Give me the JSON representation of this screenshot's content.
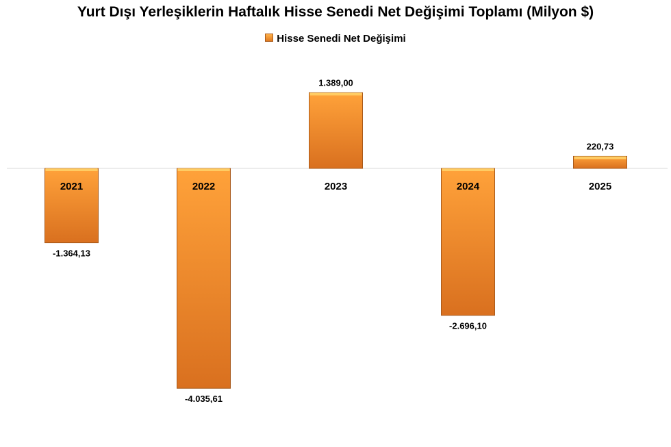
{
  "chart_data": {
    "type": "bar",
    "title": "Yurt Dışı Yerleşiklerin Haftalık Hisse Senedi Net Değişimi Toplamı (Milyon $)",
    "categories": [
      "2021",
      "2022",
      "2023",
      "2024",
      "2025"
    ],
    "series": [
      {
        "name": "Hisse Senedi Net Değişimi",
        "values": [
          -1364.13,
          -4035.61,
          1389.0,
          -2696.1,
          220.73
        ],
        "value_labels": [
          "-1.364,13",
          "-4.035,61",
          "1.389,00",
          "-2.696,10",
          "220,73"
        ]
      }
    ],
    "xlabel": "",
    "ylabel": "",
    "ylim": [
      -4400,
      1700
    ],
    "grid": false,
    "legend_position": "top",
    "colors": {
      "bar_top": "#ffa23a",
      "bar_bottom": "#d9701f",
      "bar_edge": "#a8591a",
      "bar_highlight": "#ffd36b",
      "axis": "#d9d9d9"
    }
  }
}
